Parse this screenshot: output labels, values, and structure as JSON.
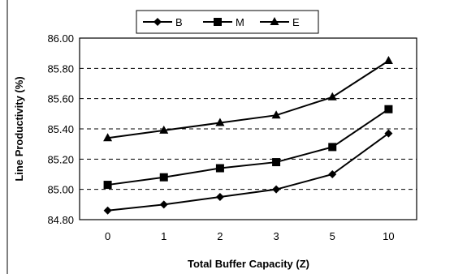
{
  "chart_data": {
    "type": "line",
    "title": "",
    "xlabel": "Total Buffer Capacity (Z)",
    "ylabel": "Line Productivity (%)",
    "categories": [
      "0",
      "1",
      "2",
      "3",
      "5",
      "10"
    ],
    "ylim": [
      84.8,
      86.0
    ],
    "yticks": [
      "84.80",
      "85.00",
      "85.20",
      "85.40",
      "85.60",
      "85.80",
      "86.00"
    ],
    "grid": "horizontal dashed",
    "legend": "top",
    "series": [
      {
        "name": "B",
        "marker": "diamond",
        "values": [
          84.86,
          84.9,
          84.95,
          85.0,
          85.1,
          85.37
        ]
      },
      {
        "name": "M",
        "marker": "square",
        "values": [
          85.03,
          85.08,
          85.14,
          85.18,
          85.28,
          85.53
        ]
      },
      {
        "name": "E",
        "marker": "triangle",
        "values": [
          85.34,
          85.39,
          85.44,
          85.49,
          85.61,
          85.85
        ]
      }
    ]
  }
}
